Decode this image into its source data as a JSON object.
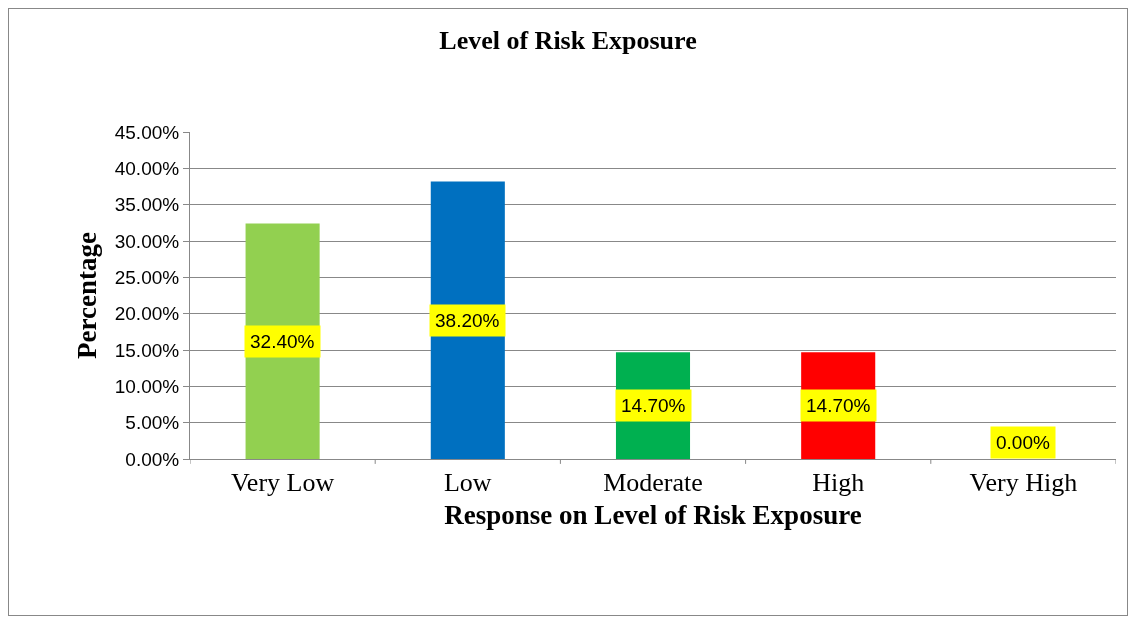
{
  "chart_data": {
    "type": "bar",
    "title": "Level of Risk Exposure",
    "xlabel": "Response on Level of Risk Exposure",
    "ylabel": "Percentage",
    "categories": [
      "Very Low",
      "Low",
      "Moderate",
      "High",
      "Very High"
    ],
    "values": [
      32.4,
      38.2,
      14.7,
      14.7,
      0
    ],
    "colors": [
      "#92d050",
      "#0070c0",
      "#00b050",
      "#ff0000",
      "#7030a0"
    ],
    "value_labels": [
      "32.40%",
      "38.20%",
      "14.70%",
      "14.70%",
      "0.00%"
    ],
    "ylim": [
      0,
      45
    ],
    "yticks": [
      {
        "value": 0,
        "label": "0.00%"
      },
      {
        "value": 5,
        "label": "5.00%"
      },
      {
        "value": 10,
        "label": "10.00%"
      },
      {
        "value": 15,
        "label": "15.00%"
      },
      {
        "value": 20,
        "label": "20.00%"
      },
      {
        "value": 25,
        "label": "25.00%"
      },
      {
        "value": 30,
        "label": "30.00%"
      },
      {
        "value": 35,
        "label": "35.00%"
      },
      {
        "value": 40,
        "label": "40.00%"
      },
      {
        "value": 45,
        "label": "45.00%"
      }
    ],
    "grid": "y"
  }
}
